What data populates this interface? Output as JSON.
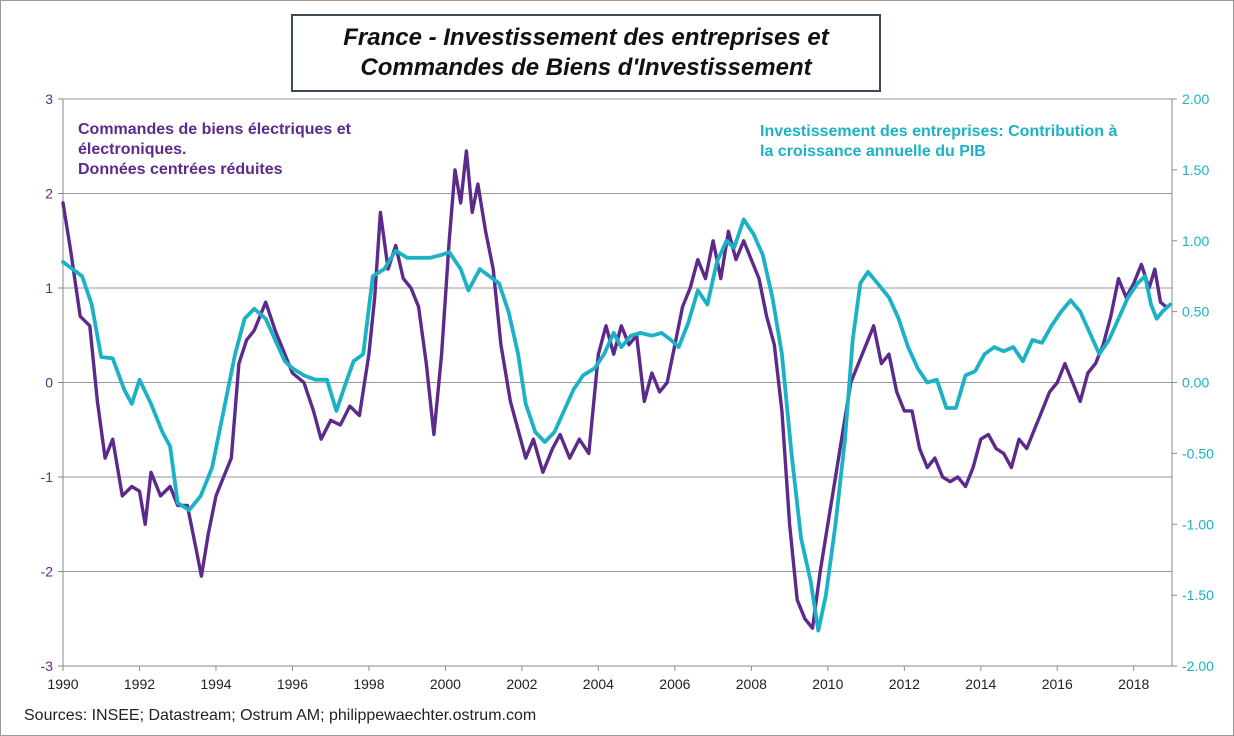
{
  "chart_data": {
    "type": "line",
    "title": [
      "France - Investissement des entreprises et",
      "Commandes de Biens d'Investissement"
    ],
    "x_ticks": [
      "1990",
      "1992",
      "1994",
      "1996",
      "1998",
      "2000",
      "2002",
      "2004",
      "2006",
      "2008",
      "2010",
      "2012",
      "2014",
      "2016",
      "2018"
    ],
    "xlim": [
      1990,
      2019
    ],
    "left_axis": {
      "ylim": [
        -3,
        3
      ],
      "ticks": [
        "3",
        "2",
        "1",
        "0",
        "-1",
        "-2",
        "-3"
      ],
      "color": "#5c2a8a"
    },
    "right_axis": {
      "ylim": [
        -2,
        2
      ],
      "ticks": [
        "2.00",
        "1.50",
        "1.00",
        "0.50",
        "0.00",
        "-0.50",
        "-1.00",
        "-1.50",
        "-2.00"
      ],
      "color": "#1ab2c4"
    },
    "grid": "horizontal",
    "series": [
      {
        "name": [
          "Commandes de biens électriques et",
          "électroniques.",
          "Données centrées réduites"
        ],
        "axis": "left",
        "color": "#5c2a8a",
        "points": [
          [
            1990.0,
            1.9
          ],
          [
            1990.2,
            1.4
          ],
          [
            1990.45,
            0.7
          ],
          [
            1990.7,
            0.6
          ],
          [
            1990.9,
            -0.2
          ],
          [
            1991.1,
            -0.8
          ],
          [
            1991.3,
            -0.6
          ],
          [
            1991.55,
            -1.2
          ],
          [
            1991.8,
            -1.1
          ],
          [
            1992.0,
            -1.15
          ],
          [
            1992.15,
            -1.5
          ],
          [
            1992.3,
            -0.95
          ],
          [
            1992.55,
            -1.2
          ],
          [
            1992.8,
            -1.1
          ],
          [
            1993.0,
            -1.3
          ],
          [
            1993.25,
            -1.3
          ],
          [
            1993.5,
            -1.8
          ],
          [
            1993.62,
            -2.05
          ],
          [
            1993.8,
            -1.6
          ],
          [
            1994.0,
            -1.2
          ],
          [
            1994.2,
            -1.0
          ],
          [
            1994.4,
            -0.8
          ],
          [
            1994.6,
            0.2
          ],
          [
            1994.8,
            0.45
          ],
          [
            1995.0,
            0.55
          ],
          [
            1995.3,
            0.85
          ],
          [
            1995.55,
            0.55
          ],
          [
            1995.8,
            0.3
          ],
          [
            1996.0,
            0.1
          ],
          [
            1996.3,
            0.0
          ],
          [
            1996.55,
            -0.3
          ],
          [
            1996.75,
            -0.6
          ],
          [
            1997.0,
            -0.4
          ],
          [
            1997.25,
            -0.45
          ],
          [
            1997.5,
            -0.25
          ],
          [
            1997.75,
            -0.35
          ],
          [
            1998.0,
            0.3
          ],
          [
            1998.15,
            0.9
          ],
          [
            1998.3,
            1.8
          ],
          [
            1998.5,
            1.2
          ],
          [
            1998.7,
            1.45
          ],
          [
            1998.9,
            1.1
          ],
          [
            1999.1,
            1.0
          ],
          [
            1999.3,
            0.8
          ],
          [
            1999.5,
            0.2
          ],
          [
            1999.7,
            -0.55
          ],
          [
            1999.9,
            0.3
          ],
          [
            2000.1,
            1.5
          ],
          [
            2000.25,
            2.25
          ],
          [
            2000.4,
            1.9
          ],
          [
            2000.55,
            2.45
          ],
          [
            2000.7,
            1.8
          ],
          [
            2000.85,
            2.1
          ],
          [
            2001.05,
            1.6
          ],
          [
            2001.25,
            1.2
          ],
          [
            2001.45,
            0.4
          ],
          [
            2001.7,
            -0.2
          ],
          [
            2001.9,
            -0.5
          ],
          [
            2002.1,
            -0.8
          ],
          [
            2002.3,
            -0.6
          ],
          [
            2002.55,
            -0.95
          ],
          [
            2002.8,
            -0.7
          ],
          [
            2003.0,
            -0.55
          ],
          [
            2003.25,
            -0.8
          ],
          [
            2003.5,
            -0.6
          ],
          [
            2003.75,
            -0.75
          ],
          [
            2004.0,
            0.3
          ],
          [
            2004.2,
            0.6
          ],
          [
            2004.4,
            0.3
          ],
          [
            2004.6,
            0.6
          ],
          [
            2004.8,
            0.4
          ],
          [
            2005.0,
            0.5
          ],
          [
            2005.2,
            -0.2
          ],
          [
            2005.4,
            0.1
          ],
          [
            2005.6,
            -0.1
          ],
          [
            2005.8,
            0.0
          ],
          [
            2006.0,
            0.4
          ],
          [
            2006.2,
            0.8
          ],
          [
            2006.4,
            1.0
          ],
          [
            2006.6,
            1.3
          ],
          [
            2006.8,
            1.1
          ],
          [
            2007.0,
            1.5
          ],
          [
            2007.2,
            1.1
          ],
          [
            2007.4,
            1.6
          ],
          [
            2007.6,
            1.3
          ],
          [
            2007.8,
            1.5
          ],
          [
            2008.0,
            1.3
          ],
          [
            2008.2,
            1.1
          ],
          [
            2008.4,
            0.7
          ],
          [
            2008.6,
            0.4
          ],
          [
            2008.8,
            -0.3
          ],
          [
            2009.0,
            -1.5
          ],
          [
            2009.2,
            -2.3
          ],
          [
            2009.4,
            -2.5
          ],
          [
            2009.6,
            -2.6
          ],
          [
            2009.8,
            -2.0
          ],
          [
            2010.0,
            -1.5
          ],
          [
            2010.2,
            -1.0
          ],
          [
            2010.4,
            -0.5
          ],
          [
            2010.6,
            0.0
          ],
          [
            2010.8,
            0.2
          ],
          [
            2011.0,
            0.4
          ],
          [
            2011.2,
            0.6
          ],
          [
            2011.4,
            0.2
          ],
          [
            2011.6,
            0.3
          ],
          [
            2011.8,
            -0.1
          ],
          [
            2012.0,
            -0.3
          ],
          [
            2012.2,
            -0.3
          ],
          [
            2012.4,
            -0.7
          ],
          [
            2012.6,
            -0.9
          ],
          [
            2012.8,
            -0.8
          ],
          [
            2013.0,
            -1.0
          ],
          [
            2013.2,
            -1.05
          ],
          [
            2013.4,
            -1.0
          ],
          [
            2013.6,
            -1.1
          ],
          [
            2013.8,
            -0.9
          ],
          [
            2014.0,
            -0.6
          ],
          [
            2014.2,
            -0.55
          ],
          [
            2014.4,
            -0.7
          ],
          [
            2014.6,
            -0.75
          ],
          [
            2014.8,
            -0.9
          ],
          [
            2015.0,
            -0.6
          ],
          [
            2015.2,
            -0.7
          ],
          [
            2015.4,
            -0.5
          ],
          [
            2015.6,
            -0.3
          ],
          [
            2015.8,
            -0.1
          ],
          [
            2016.0,
            0.0
          ],
          [
            2016.2,
            0.2
          ],
          [
            2016.4,
            0.0
          ],
          [
            2016.6,
            -0.2
          ],
          [
            2016.8,
            0.1
          ],
          [
            2017.0,
            0.2
          ],
          [
            2017.2,
            0.4
          ],
          [
            2017.4,
            0.7
          ],
          [
            2017.6,
            1.1
          ],
          [
            2017.8,
            0.9
          ],
          [
            2018.0,
            1.05
          ],
          [
            2018.2,
            1.25
          ],
          [
            2018.4,
            1.0
          ],
          [
            2018.55,
            1.2
          ],
          [
            2018.7,
            0.85
          ],
          [
            2018.85,
            0.8
          ]
        ]
      },
      {
        "name": [
          "Investissement des entreprises: Contribution à",
          "la croissance annuelle du PIB"
        ],
        "axis": "right",
        "color": "#1ab2c4",
        "points": [
          [
            1990.0,
            0.85
          ],
          [
            1990.5,
            0.75
          ],
          [
            1990.75,
            0.55
          ],
          [
            1991.0,
            0.18
          ],
          [
            1991.3,
            0.17
          ],
          [
            1991.6,
            -0.05
          ],
          [
            1991.8,
            -0.15
          ],
          [
            1992.0,
            0.02
          ],
          [
            1992.3,
            -0.15
          ],
          [
            1992.6,
            -0.35
          ],
          [
            1992.8,
            -0.45
          ],
          [
            1993.0,
            -0.85
          ],
          [
            1993.3,
            -0.9
          ],
          [
            1993.6,
            -0.8
          ],
          [
            1993.9,
            -0.6
          ],
          [
            1994.2,
            -0.2
          ],
          [
            1994.5,
            0.2
          ],
          [
            1994.75,
            0.45
          ],
          [
            1995.0,
            0.52
          ],
          [
            1995.3,
            0.45
          ],
          [
            1995.55,
            0.3
          ],
          [
            1995.8,
            0.15
          ],
          [
            1996.0,
            0.1
          ],
          [
            1996.3,
            0.05
          ],
          [
            1996.6,
            0.02
          ],
          [
            1996.9,
            0.02
          ],
          [
            1997.15,
            -0.2
          ],
          [
            1997.4,
            0.0
          ],
          [
            1997.6,
            0.15
          ],
          [
            1997.85,
            0.2
          ],
          [
            1998.1,
            0.75
          ],
          [
            1998.4,
            0.8
          ],
          [
            1998.7,
            0.93
          ],
          [
            1999.0,
            0.88
          ],
          [
            1999.3,
            0.88
          ],
          [
            1999.6,
            0.88
          ],
          [
            1999.9,
            0.9
          ],
          [
            2000.1,
            0.92
          ],
          [
            2000.4,
            0.8
          ],
          [
            2000.6,
            0.65
          ],
          [
            2000.9,
            0.8
          ],
          [
            2001.15,
            0.75
          ],
          [
            2001.4,
            0.7
          ],
          [
            2001.65,
            0.5
          ],
          [
            2001.9,
            0.2
          ],
          [
            2002.1,
            -0.15
          ],
          [
            2002.35,
            -0.35
          ],
          [
            2002.6,
            -0.42
          ],
          [
            2002.85,
            -0.35
          ],
          [
            2003.1,
            -0.2
          ],
          [
            2003.35,
            -0.05
          ],
          [
            2003.6,
            0.05
          ],
          [
            2003.9,
            0.1
          ],
          [
            2004.15,
            0.2
          ],
          [
            2004.4,
            0.35
          ],
          [
            2004.6,
            0.25
          ],
          [
            2004.85,
            0.33
          ],
          [
            2005.1,
            0.35
          ],
          [
            2005.4,
            0.33
          ],
          [
            2005.65,
            0.35
          ],
          [
            2005.9,
            0.3
          ],
          [
            2006.1,
            0.25
          ],
          [
            2006.35,
            0.42
          ],
          [
            2006.6,
            0.65
          ],
          [
            2006.85,
            0.55
          ],
          [
            2007.1,
            0.85
          ],
          [
            2007.35,
            1.0
          ],
          [
            2007.55,
            0.95
          ],
          [
            2007.8,
            1.15
          ],
          [
            2008.05,
            1.05
          ],
          [
            2008.3,
            0.9
          ],
          [
            2008.55,
            0.6
          ],
          [
            2008.8,
            0.2
          ],
          [
            2009.05,
            -0.5
          ],
          [
            2009.3,
            -1.1
          ],
          [
            2009.55,
            -1.4
          ],
          [
            2009.75,
            -1.75
          ],
          [
            2009.95,
            -1.5
          ],
          [
            2010.2,
            -1.0
          ],
          [
            2010.45,
            -0.4
          ],
          [
            2010.65,
            0.3
          ],
          [
            2010.85,
            0.7
          ],
          [
            2011.05,
            0.78
          ],
          [
            2011.3,
            0.7
          ],
          [
            2011.6,
            0.6
          ],
          [
            2011.85,
            0.45
          ],
          [
            2012.1,
            0.25
          ],
          [
            2012.35,
            0.1
          ],
          [
            2012.6,
            0.0
          ],
          [
            2012.85,
            0.02
          ],
          [
            2013.1,
            -0.18
          ],
          [
            2013.35,
            -0.18
          ],
          [
            2013.6,
            0.05
          ],
          [
            2013.85,
            0.08
          ],
          [
            2014.1,
            0.2
          ],
          [
            2014.35,
            0.25
          ],
          [
            2014.6,
            0.22
          ],
          [
            2014.85,
            0.25
          ],
          [
            2015.1,
            0.15
          ],
          [
            2015.35,
            0.3
          ],
          [
            2015.6,
            0.28
          ],
          [
            2015.85,
            0.4
          ],
          [
            2016.1,
            0.5
          ],
          [
            2016.35,
            0.58
          ],
          [
            2016.6,
            0.5
          ],
          [
            2016.85,
            0.35
          ],
          [
            2017.1,
            0.2
          ],
          [
            2017.35,
            0.3
          ],
          [
            2017.6,
            0.45
          ],
          [
            2017.85,
            0.6
          ],
          [
            2018.1,
            0.7
          ],
          [
            2018.3,
            0.75
          ],
          [
            2018.45,
            0.55
          ],
          [
            2018.6,
            0.45
          ],
          [
            2018.75,
            0.5
          ],
          [
            2018.95,
            0.55
          ]
        ]
      }
    ]
  },
  "source": "Sources: INSEE;  Datastream; Ostrum AM; philippewaechter.ostrum.com"
}
